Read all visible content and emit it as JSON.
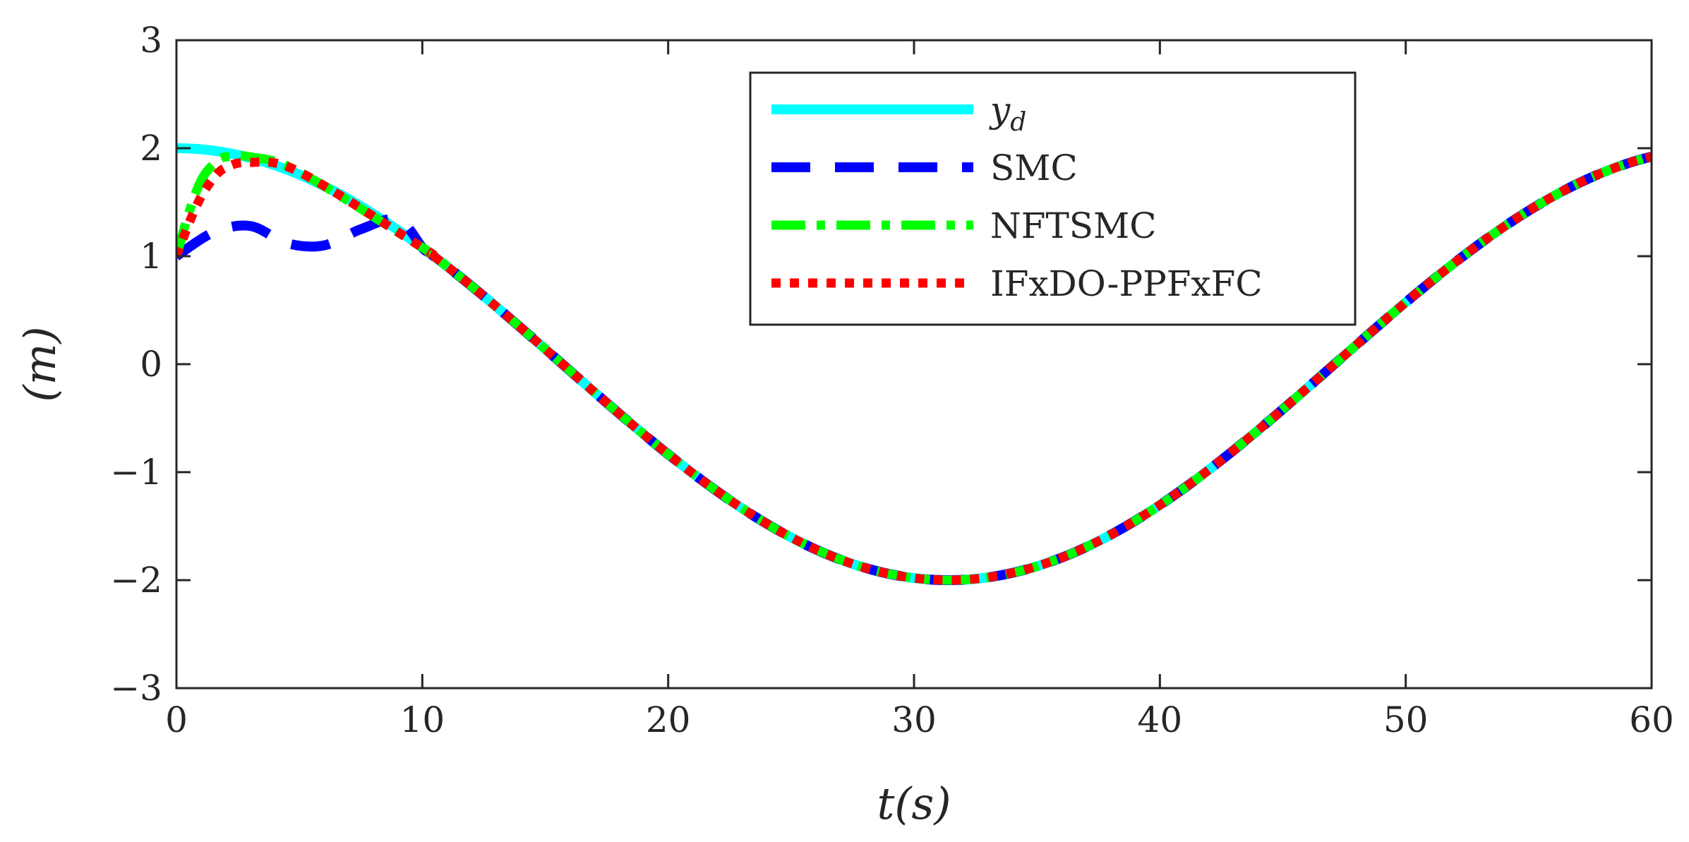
{
  "chart_data": {
    "type": "line",
    "title": "",
    "xlabel": "t(s)",
    "ylabel": "(m)",
    "xlim": [
      0,
      60
    ],
    "ylim": [
      -3,
      3
    ],
    "xticks": [
      0,
      10,
      20,
      30,
      40,
      50,
      60
    ],
    "xtick_labels": [
      "0",
      "10",
      "20",
      "30",
      "40",
      "50",
      "60"
    ],
    "yticks": [
      3,
      2,
      1,
      0,
      -1,
      -2,
      -3
    ],
    "ytick_labels": [
      "3",
      "2",
      "1",
      "0",
      "−1",
      "−2",
      "−3"
    ],
    "grid": false,
    "legend_position": "top-center",
    "reference": {
      "amplitude": 2,
      "period": 62.8
    },
    "series": [
      {
        "name": "y_d",
        "label": "y",
        "label_sub": "d",
        "color": "#00FFFF",
        "style": "solid",
        "points": [
          [
            0,
            2.0
          ],
          [
            5,
            1.78
          ],
          [
            10,
            1.16
          ],
          [
            15,
            0.2
          ],
          [
            20,
            -0.76
          ],
          [
            25,
            -1.49
          ],
          [
            30,
            -1.97
          ],
          [
            31.4,
            -2.0
          ],
          [
            35,
            -1.83
          ],
          [
            40,
            -1.3
          ],
          [
            45,
            -0.47
          ],
          [
            50,
            0.48
          ],
          [
            55,
            1.35
          ],
          [
            60,
            1.92
          ]
        ]
      },
      {
        "name": "SMC",
        "label": "SMC",
        "color": "#0000FF",
        "style": "dashed",
        "points": [
          [
            0,
            1.0
          ],
          [
            1.5,
            1.22
          ],
          [
            3,
            1.28
          ],
          [
            4.5,
            1.12
          ],
          [
            6,
            1.1
          ],
          [
            7.5,
            1.25
          ],
          [
            9,
            1.34
          ],
          [
            10,
            1.16
          ],
          [
            15,
            0.2
          ],
          [
            20,
            -0.76
          ],
          [
            25,
            -1.49
          ],
          [
            30,
            -1.97
          ],
          [
            35,
            -1.83
          ],
          [
            40,
            -1.3
          ],
          [
            45,
            -0.47
          ],
          [
            50,
            0.48
          ],
          [
            55,
            1.35
          ],
          [
            60,
            1.92
          ]
        ]
      },
      {
        "name": "NFTSMC",
        "label": "NFTSMC",
        "color": "#00FF00",
        "style": "dashdot",
        "points": [
          [
            0,
            1.0
          ],
          [
            0.5,
            1.4
          ],
          [
            1,
            1.7
          ],
          [
            1.5,
            1.85
          ],
          [
            2,
            1.92
          ],
          [
            3,
            1.92
          ],
          [
            5,
            1.78
          ],
          [
            10,
            1.16
          ],
          [
            15,
            0.2
          ],
          [
            20,
            -0.76
          ],
          [
            25,
            -1.49
          ],
          [
            30,
            -1.97
          ],
          [
            35,
            -1.83
          ],
          [
            40,
            -1.3
          ],
          [
            45,
            -0.47
          ],
          [
            50,
            0.48
          ],
          [
            55,
            1.35
          ],
          [
            60,
            1.92
          ]
        ]
      },
      {
        "name": "IFxDO-PPFxFC",
        "label": "IFxDO-PPFxFC",
        "color": "#FF0000",
        "style": "dotted",
        "points": [
          [
            0,
            1.0
          ],
          [
            0.5,
            1.3
          ],
          [
            1,
            1.55
          ],
          [
            1.5,
            1.72
          ],
          [
            2,
            1.82
          ],
          [
            3,
            1.87
          ],
          [
            5,
            1.78
          ],
          [
            10,
            1.16
          ],
          [
            15,
            0.2
          ],
          [
            20,
            -0.76
          ],
          [
            25,
            -1.49
          ],
          [
            30,
            -1.97
          ],
          [
            35,
            -1.83
          ],
          [
            40,
            -1.3
          ],
          [
            45,
            -0.47
          ],
          [
            50,
            0.48
          ],
          [
            55,
            1.35
          ],
          [
            60,
            1.92
          ]
        ]
      }
    ]
  }
}
